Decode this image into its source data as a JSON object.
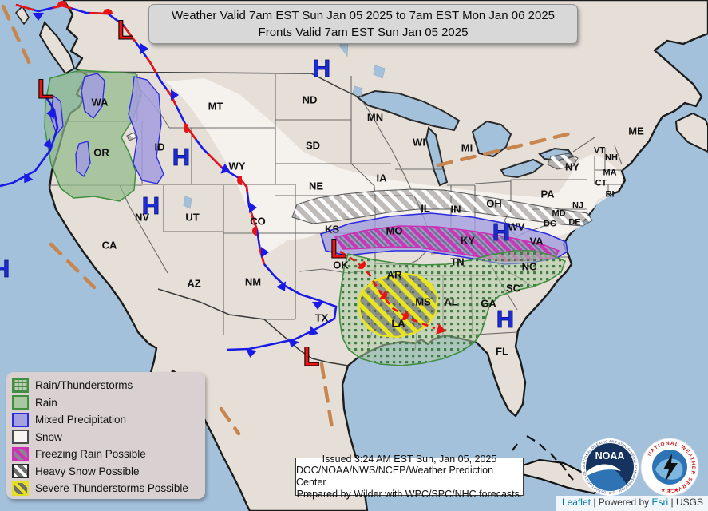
{
  "banner": {
    "line1": "Weather Valid 7am EST Sun Jan 05 2025 to 7am EST Mon Jan 06 2025",
    "line2": "Fronts Valid 7am EST Sun Jan 05 2025"
  },
  "legend": {
    "items": [
      {
        "id": "rain_thunder",
        "label": "Rain/Thunderstorms"
      },
      {
        "id": "rain",
        "label": "Rain"
      },
      {
        "id": "mixed",
        "label": "Mixed Precipitation"
      },
      {
        "id": "snow",
        "label": "Snow"
      },
      {
        "id": "freezing",
        "label": "Freezing Rain Possible"
      },
      {
        "id": "heavy_snow",
        "label": "Heavy Snow Possible"
      },
      {
        "id": "severe",
        "label": "Severe Thunderstorms Possible"
      }
    ]
  },
  "issued": {
    "line1": "Issued  3:24 AM EST  Sun, Jan 05, 2025",
    "line2": "DOC/NOAA/NWS/NCEP/Weather Prediction Center",
    "line3": "Prepared by Wilder with WPC/SPC/NHC forecasts."
  },
  "attribution": {
    "leaflet": "Leaflet",
    "separator": "|",
    "powered_by": "Powered by",
    "esri": "Esri",
    "usgs": "USGS"
  },
  "logos": {
    "noaa_text": "NOAA",
    "noaa_ring": "NATIONAL OCEANIC AND ATMOSPHERIC ADMINISTRATION · U.S. DEPARTMENT OF COMMERCE",
    "nws_ring": "NATIONAL WEATHER SERVICE",
    "nws_stars": "★ ★ ★"
  },
  "map": {
    "states": [
      {
        "id": "WA",
        "label": "WA"
      },
      {
        "id": "OR",
        "label": "OR"
      },
      {
        "id": "CA",
        "label": "CA"
      },
      {
        "id": "NV",
        "label": "NV"
      },
      {
        "id": "ID",
        "label": "ID"
      },
      {
        "id": "MT",
        "label": "MT"
      },
      {
        "id": "WY",
        "label": "WY"
      },
      {
        "id": "UT",
        "label": "UT"
      },
      {
        "id": "CO",
        "label": "CO"
      },
      {
        "id": "AZ",
        "label": "AZ"
      },
      {
        "id": "NM",
        "label": "NM"
      },
      {
        "id": "ND",
        "label": "ND"
      },
      {
        "id": "SD",
        "label": "SD"
      },
      {
        "id": "NE",
        "label": "NE"
      },
      {
        "id": "KS",
        "label": "KS"
      },
      {
        "id": "OK",
        "label": "OK"
      },
      {
        "id": "TX",
        "label": "TX"
      },
      {
        "id": "MN",
        "label": "MN"
      },
      {
        "id": "IA",
        "label": "IA"
      },
      {
        "id": "MO",
        "label": "MO"
      },
      {
        "id": "AR",
        "label": "AR"
      },
      {
        "id": "LA",
        "label": "LA"
      },
      {
        "id": "WI",
        "label": "WI"
      },
      {
        "id": "IL",
        "label": "IL"
      },
      {
        "id": "MS",
        "label": "MS"
      },
      {
        "id": "MI",
        "label": "MI"
      },
      {
        "id": "IN",
        "label": "IN"
      },
      {
        "id": "KY",
        "label": "KY"
      },
      {
        "id": "TN",
        "label": "TN"
      },
      {
        "id": "AL",
        "label": "AL"
      },
      {
        "id": "OH",
        "label": "OH"
      },
      {
        "id": "WV",
        "label": "WV"
      },
      {
        "id": "VA",
        "label": "VA"
      },
      {
        "id": "NC",
        "label": "NC"
      },
      {
        "id": "SC",
        "label": "SC"
      },
      {
        "id": "GA",
        "label": "GA"
      },
      {
        "id": "FL",
        "label": "FL"
      },
      {
        "id": "PA",
        "label": "PA"
      },
      {
        "id": "NY",
        "label": "NY"
      },
      {
        "id": "ME",
        "label": "ME"
      },
      {
        "id": "VT",
        "label": "VT"
      },
      {
        "id": "NH",
        "label": "NH"
      },
      {
        "id": "MA",
        "label": "MA"
      },
      {
        "id": "CT",
        "label": "CT"
      },
      {
        "id": "RI",
        "label": "RI"
      },
      {
        "id": "NJ",
        "label": "NJ"
      },
      {
        "id": "MD",
        "label": "MD"
      },
      {
        "id": "DE",
        "label": "DE"
      },
      {
        "id": "DC",
        "label": "DC"
      }
    ],
    "pressure": [
      {
        "id": "h1",
        "letter": "H"
      },
      {
        "id": "h2",
        "letter": "H"
      },
      {
        "id": "h3",
        "letter": "H"
      },
      {
        "id": "h4",
        "letter": "H"
      },
      {
        "id": "h5",
        "letter": "H"
      },
      {
        "id": "h6",
        "letter": "H"
      },
      {
        "id": "l1",
        "letter": "L"
      },
      {
        "id": "l2",
        "letter": "L"
      },
      {
        "id": "l3",
        "letter": "L"
      },
      {
        "id": "l4",
        "letter": "L"
      }
    ],
    "colors": {
      "ocean": "#a4c1db",
      "land": "#e6dfd8",
      "us_land": "#eae6e1",
      "snow": "#f6f2ef",
      "rain": "#8fb989",
      "rain_border": "#3f8f3f",
      "mixed": "#a29ede",
      "mixed_border": "#2a2ae0",
      "freezing": "#cb2fb4",
      "severe": "#e8e424",
      "cold_front": "#1a1ae6",
      "warm_front": "#e81414",
      "trough": "#c9854e",
      "high": "#1d2bdd",
      "low": "#ee1410"
    }
  }
}
